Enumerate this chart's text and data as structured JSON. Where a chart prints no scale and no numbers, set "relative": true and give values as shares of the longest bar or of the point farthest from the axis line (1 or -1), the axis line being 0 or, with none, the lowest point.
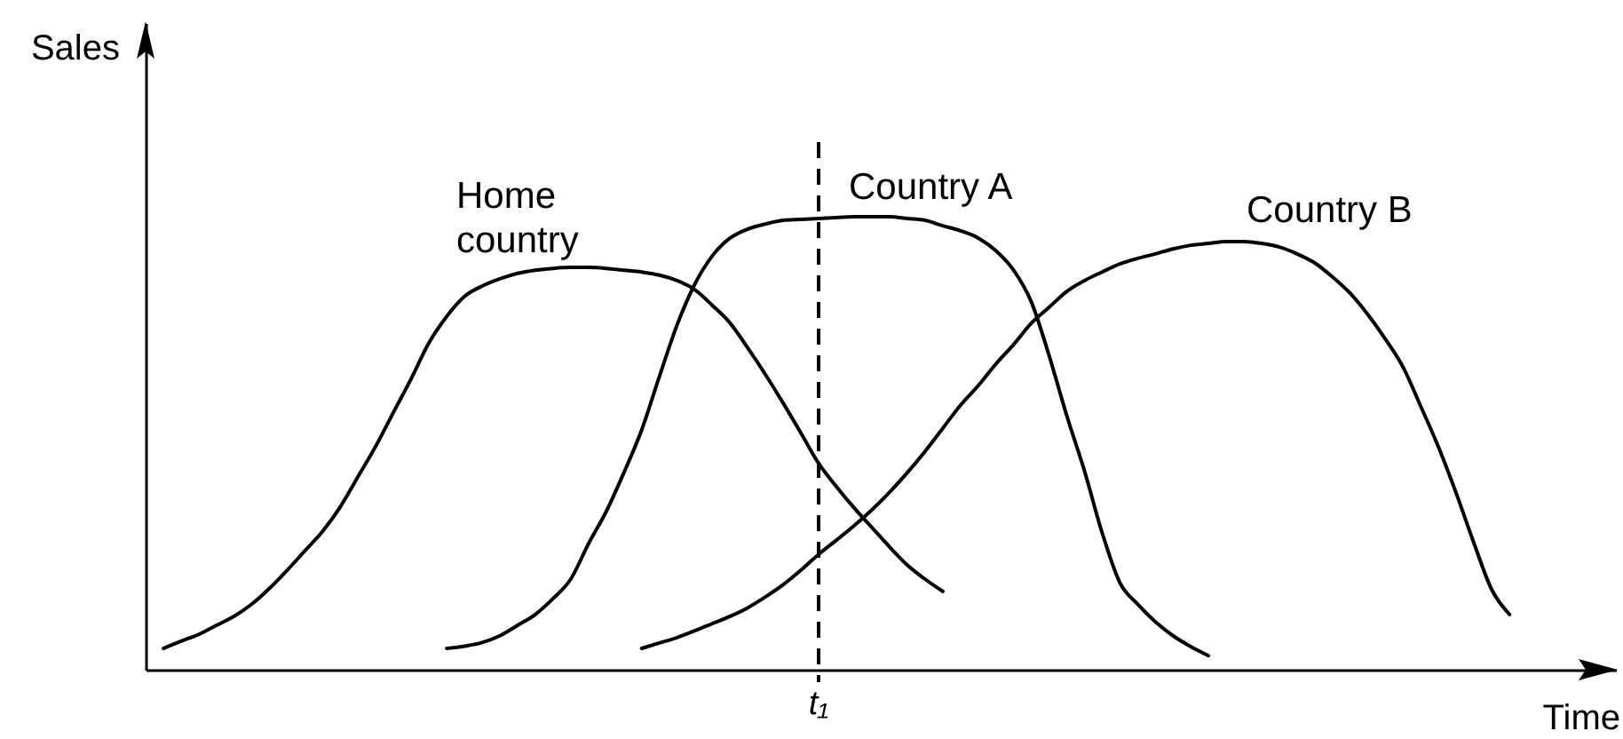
{
  "chart_data": {
    "type": "line",
    "relative": true,
    "xlabel": "Time",
    "ylabel": "Sales",
    "grid": false,
    "legend": false,
    "marker": "none",
    "categories": [
      null,
      null,
      null,
      null,
      null,
      null,
      null,
      null,
      null,
      null,
      null,
      null,
      null,
      null,
      null,
      null,
      null,
      null,
      null,
      null,
      null,
      null,
      null,
      null,
      null,
      null,
      null,
      null,
      null,
      null,
      null,
      null,
      null,
      null,
      null,
      null,
      null,
      null,
      null,
      null,
      null,
      null,
      null,
      null,
      null,
      null,
      null,
      null,
      null,
      null,
      null,
      null,
      null,
      null,
      null,
      null,
      null,
      null,
      null,
      null,
      null,
      null,
      null,
      null,
      null,
      null,
      null,
      null,
      null,
      null,
      null,
      null,
      null,
      null,
      null,
      null,
      null,
      null,
      null,
      null,
      null,
      null,
      null,
      null
    ],
    "series": [
      {
        "name": "Home country",
        "color": "#000000",
        "values": [
          null,
          0.047,
          0.063,
          0.078,
          0.098,
          0.118,
          0.145,
          0.18,
          0.22,
          0.263,
          0.306,
          0.36,
          0.427,
          0.494,
          0.569,
          0.643,
          0.722,
          0.78,
          0.824,
          0.847,
          0.863,
          0.875,
          0.882,
          0.886,
          0.888,
          0.888,
          0.886,
          0.882,
          0.878,
          0.871,
          0.859,
          0.839,
          0.804,
          0.765,
          0.71,
          0.651,
          0.588,
          0.522,
          0.455,
          0.404,
          0.357,
          0.314,
          0.271,
          0.231,
          0.2,
          0.173,
          null,
          null,
          null,
          null,
          null,
          null,
          null,
          null,
          null,
          null,
          null,
          null,
          null,
          null,
          null,
          null,
          null,
          null,
          null,
          null,
          null,
          null,
          null,
          null,
          null,
          null,
          null,
          null,
          null,
          null,
          null,
          null,
          null,
          null,
          null,
          null,
          null,
          null
        ]
      },
      {
        "name": "Country A",
        "color": "#000000",
        "values": [
          null,
          null,
          null,
          null,
          null,
          null,
          null,
          null,
          null,
          null,
          null,
          null,
          null,
          null,
          null,
          null,
          null,
          0.047,
          0.052,
          0.06,
          0.075,
          0.098,
          0.122,
          0.157,
          0.2,
          0.278,
          0.349,
          0.435,
          0.529,
          0.647,
          0.761,
          0.851,
          0.914,
          0.953,
          0.973,
          0.984,
          0.992,
          0.994,
          0.996,
          0.998,
          1,
          1,
          1,
          0.996,
          0.992,
          0.98,
          0.969,
          0.953,
          0.925,
          0.882,
          0.812,
          0.694,
          0.561,
          0.439,
          0.302,
          0.192,
          0.145,
          0.106,
          0.075,
          0.051,
          0.031,
          null,
          null,
          null,
          null,
          null,
          null,
          null,
          null,
          null,
          null,
          null,
          null,
          null,
          null,
          null,
          null,
          null,
          null,
          null,
          null,
          null,
          null,
          null
        ]
      },
      {
        "name": "Country B",
        "color": "#000000",
        "values": [
          null,
          null,
          null,
          null,
          null,
          null,
          null,
          null,
          null,
          null,
          null,
          null,
          null,
          null,
          null,
          null,
          null,
          null,
          null,
          null,
          null,
          null,
          null,
          null,
          null,
          null,
          null,
          null,
          0.047,
          0.059,
          0.071,
          0.086,
          0.102,
          0.118,
          0.137,
          0.161,
          0.188,
          0.22,
          0.255,
          0.286,
          0.318,
          0.353,
          0.392,
          0.435,
          0.482,
          0.533,
          0.584,
          0.627,
          0.675,
          0.718,
          0.765,
          0.8,
          0.835,
          0.859,
          0.878,
          0.896,
          0.908,
          0.918,
          0.929,
          0.937,
          0.941,
          0.945,
          0.945,
          0.941,
          0.933,
          0.918,
          0.898,
          0.867,
          0.831,
          0.784,
          0.729,
          0.667,
          0.58,
          0.49,
          0.388,
          0.278,
          0.176,
          0.122,
          null,
          null,
          null,
          null,
          null,
          null
        ]
      }
    ],
    "annotations": [
      "t₁"
    ]
  }
}
